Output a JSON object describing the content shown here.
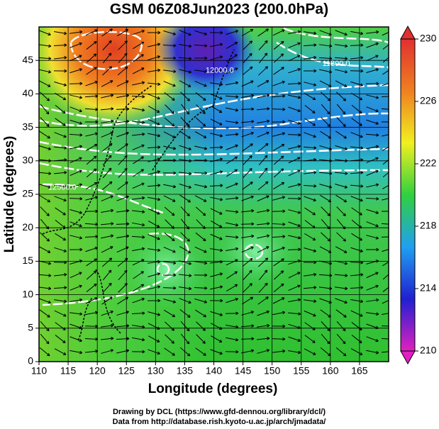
{
  "chart_data": {
    "type": "field-map",
    "title": "GSM 06Z08Jun2023 (200.0hPa)",
    "x_label": "Longitude (degrees)",
    "y_label": "Latitude  (degrees)",
    "xlim": [
      110,
      170
    ],
    "xticks": [
      110,
      115,
      120,
      125,
      130,
      135,
      140,
      145,
      150,
      155,
      160,
      165
    ],
    "ylim": [
      0,
      50
    ],
    "yticks": [
      0,
      5,
      10,
      15,
      20,
      25,
      30,
      35,
      40,
      45
    ],
    "grid": true,
    "colorbar": {
      "lim": [
        210,
        230
      ],
      "ticks": [
        210,
        214,
        218,
        222,
        226,
        230
      ],
      "colors": [
        "#e020c0",
        "#2020d0",
        "#20a0f0",
        "#30d040",
        "#f0f020",
        "#f08020",
        "#e03030"
      ]
    },
    "annotations": [
      {
        "text": "12000.0",
        "x": 141,
        "y": 43.5
      },
      {
        "text": "11800.0",
        "x": 161,
        "y": 44.5
      },
      {
        "text": "12500.0",
        "x": 114,
        "y": 26
      }
    ],
    "credits": [
      "Drawing by DCL (https://www.gfd-dennou.org/library/dcl/)",
      "Data from http://database.rish.kyoto-u.ac.jp/arch/jmadata/"
    ]
  }
}
